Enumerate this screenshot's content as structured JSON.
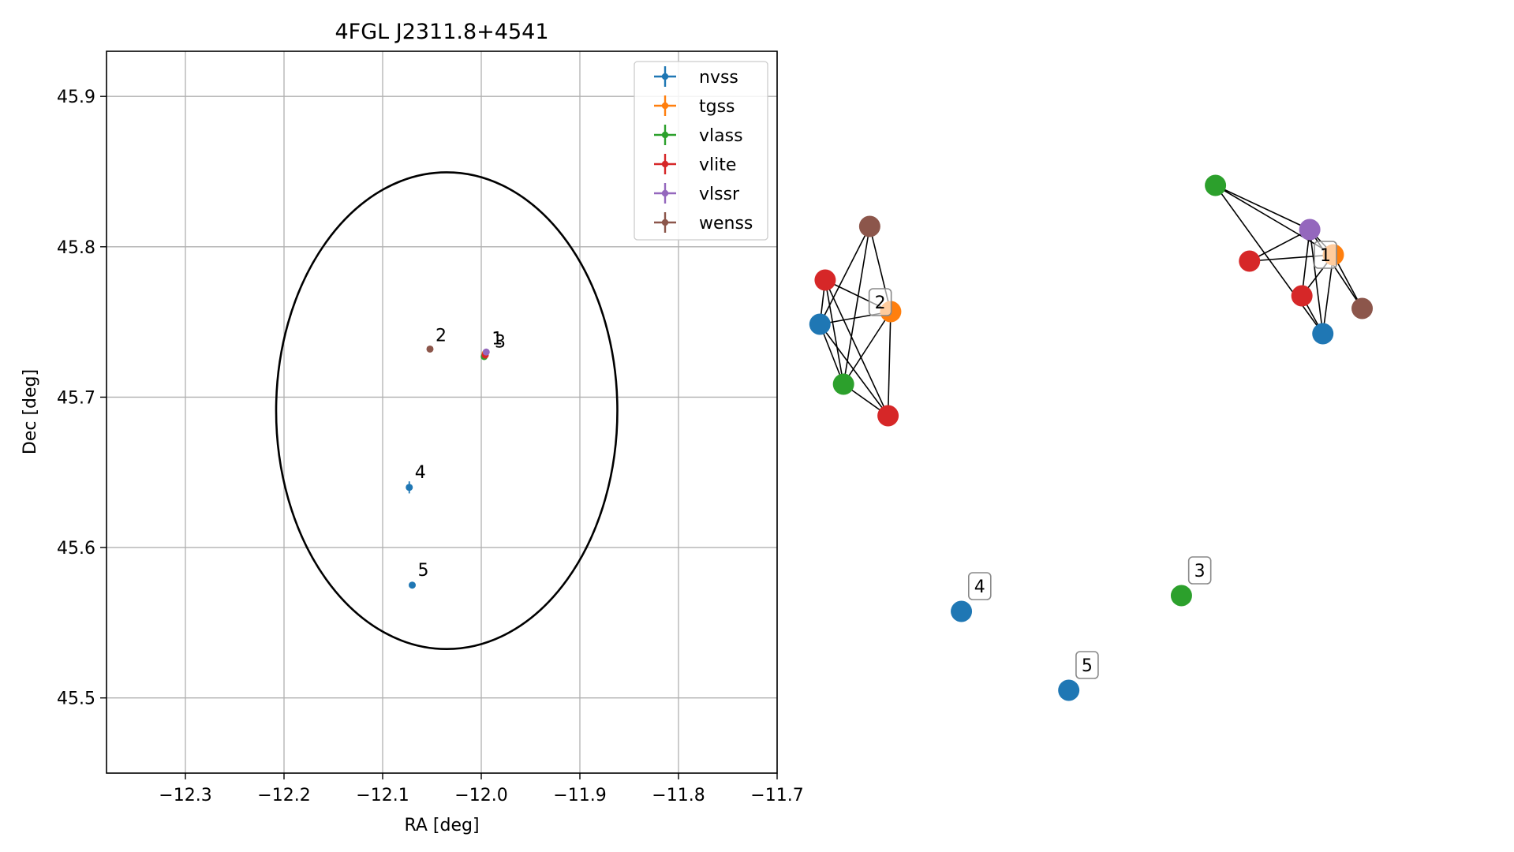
{
  "colors": {
    "nvss": "#1f77b4",
    "tgss": "#ff7f0e",
    "vlass": "#2ca02c",
    "vlite": "#d62728",
    "vlssr": "#9467bd",
    "wenss": "#8c564b"
  },
  "chart_data": [
    {
      "type": "scatter",
      "title": "4FGL J2311.8+4541",
      "xlabel": "RA [deg]",
      "ylabel": "Dec [deg]",
      "xlim": [
        -12.38,
        -11.7
      ],
      "ylim": [
        45.45,
        45.93
      ],
      "xticks": [
        -12.3,
        -12.2,
        -12.1,
        -12.0,
        -11.9,
        -11.8,
        -11.7
      ],
      "xtick_labels": [
        "−12.3",
        "−12.2",
        "−12.1",
        "−12.0",
        "−11.9",
        "−11.8",
        "−11.7"
      ],
      "yticks": [
        45.5,
        45.6,
        45.7,
        45.8,
        45.9
      ],
      "ytick_labels": [
        "45.5",
        "45.6",
        "45.7",
        "45.8",
        "45.9"
      ],
      "grid": true,
      "legend_position": "top-right",
      "legend": [
        "nvss",
        "tgss",
        "vlass",
        "vlite",
        "vlssr",
        "wenss"
      ],
      "ellipse": {
        "center": [
          -12.035,
          45.691
        ],
        "half_width": 0.173,
        "half_height": 0.1585
      },
      "points": [
        {
          "survey": "nvss",
          "ra": -12.073,
          "dec": 45.64,
          "err_dec": 0.004
        },
        {
          "survey": "nvss",
          "ra": -12.07,
          "dec": 45.575
        },
        {
          "survey": "vlass",
          "ra": -11.997,
          "dec": 45.727
        },
        {
          "survey": "tgss",
          "ra": -11.996,
          "dec": 45.729
        },
        {
          "survey": "vlite",
          "ra": -11.996,
          "dec": 45.728
        },
        {
          "survey": "vlssr",
          "ra": -11.995,
          "dec": 45.73
        },
        {
          "survey": "wenss",
          "ra": -12.052,
          "dec": 45.732
        }
      ],
      "point_labels": [
        {
          "text": "1",
          "ra": -11.995,
          "dec": 45.732
        },
        {
          "text": "3",
          "ra": -11.992,
          "dec": 45.73
        },
        {
          "text": "2",
          "ra": -12.052,
          "dec": 45.734
        },
        {
          "text": "4",
          "ra": -12.073,
          "dec": 45.643
        },
        {
          "text": "5",
          "ra": -12.07,
          "dec": 45.578
        }
      ]
    },
    {
      "type": "network",
      "nodes": [
        {
          "id": "g1",
          "survey": "vlass",
          "x": 0.8,
          "y": 0.95
        },
        {
          "id": "h1",
          "survey": "vlssr",
          "x": 1.16,
          "y": 0.81
        },
        {
          "id": "t1",
          "survey": "tgss",
          "x": 1.25,
          "y": 0.73
        },
        {
          "id": "r1",
          "survey": "vlite",
          "x": 0.93,
          "y": 0.71
        },
        {
          "id": "q1",
          "survey": "vlite",
          "x": 1.13,
          "y": 0.6
        },
        {
          "id": "w1",
          "survey": "wenss",
          "x": 1.36,
          "y": 0.56
        },
        {
          "id": "n1",
          "survey": "nvss",
          "x": 1.21,
          "y": 0.48
        },
        {
          "id": "w2",
          "survey": "wenss",
          "x": -0.52,
          "y": 0.82
        },
        {
          "id": "r2",
          "survey": "vlite",
          "x": -0.69,
          "y": 0.65
        },
        {
          "id": "t2",
          "survey": "tgss",
          "x": -0.44,
          "y": 0.55
        },
        {
          "id": "n2",
          "survey": "nvss",
          "x": -0.71,
          "y": 0.51
        },
        {
          "id": "g2",
          "survey": "vlass",
          "x": -0.62,
          "y": 0.32
        },
        {
          "id": "r3",
          "survey": "vlite",
          "x": -0.45,
          "y": 0.22
        },
        {
          "id": "n4",
          "survey": "nvss",
          "x": -0.17,
          "y": -0.4
        },
        {
          "id": "g3",
          "survey": "vlass",
          "x": 0.67,
          "y": -0.35
        },
        {
          "id": "n5",
          "survey": "nvss",
          "x": 0.24,
          "y": -0.65
        }
      ],
      "edges": [
        [
          "g1",
          "h1"
        ],
        [
          "g1",
          "t1"
        ],
        [
          "g1",
          "n1"
        ],
        [
          "h1",
          "r1"
        ],
        [
          "h1",
          "q1"
        ],
        [
          "h1",
          "t1"
        ],
        [
          "h1",
          "w1"
        ],
        [
          "h1",
          "n1"
        ],
        [
          "r1",
          "t1"
        ],
        [
          "q1",
          "t1"
        ],
        [
          "q1",
          "n1"
        ],
        [
          "t1",
          "w1"
        ],
        [
          "t1",
          "n1"
        ],
        [
          "w2",
          "n2"
        ],
        [
          "w2",
          "t2"
        ],
        [
          "w2",
          "g2"
        ],
        [
          "r2",
          "t2"
        ],
        [
          "r2",
          "n2"
        ],
        [
          "r2",
          "g2"
        ],
        [
          "r2",
          "r3"
        ],
        [
          "t2",
          "n2"
        ],
        [
          "t2",
          "g2"
        ],
        [
          "t2",
          "r3"
        ],
        [
          "n2",
          "g2"
        ],
        [
          "n2",
          "r3"
        ],
        [
          "g2",
          "r3"
        ]
      ],
      "labels": [
        {
          "text": "1",
          "x": 1.22,
          "y": 0.73
        },
        {
          "text": "2",
          "x": -0.48,
          "y": 0.58
        },
        {
          "text": "3",
          "x": 0.74,
          "y": -0.27
        },
        {
          "text": "4",
          "x": -0.1,
          "y": -0.32
        },
        {
          "text": "5",
          "x": 0.31,
          "y": -0.57
        }
      ]
    }
  ]
}
